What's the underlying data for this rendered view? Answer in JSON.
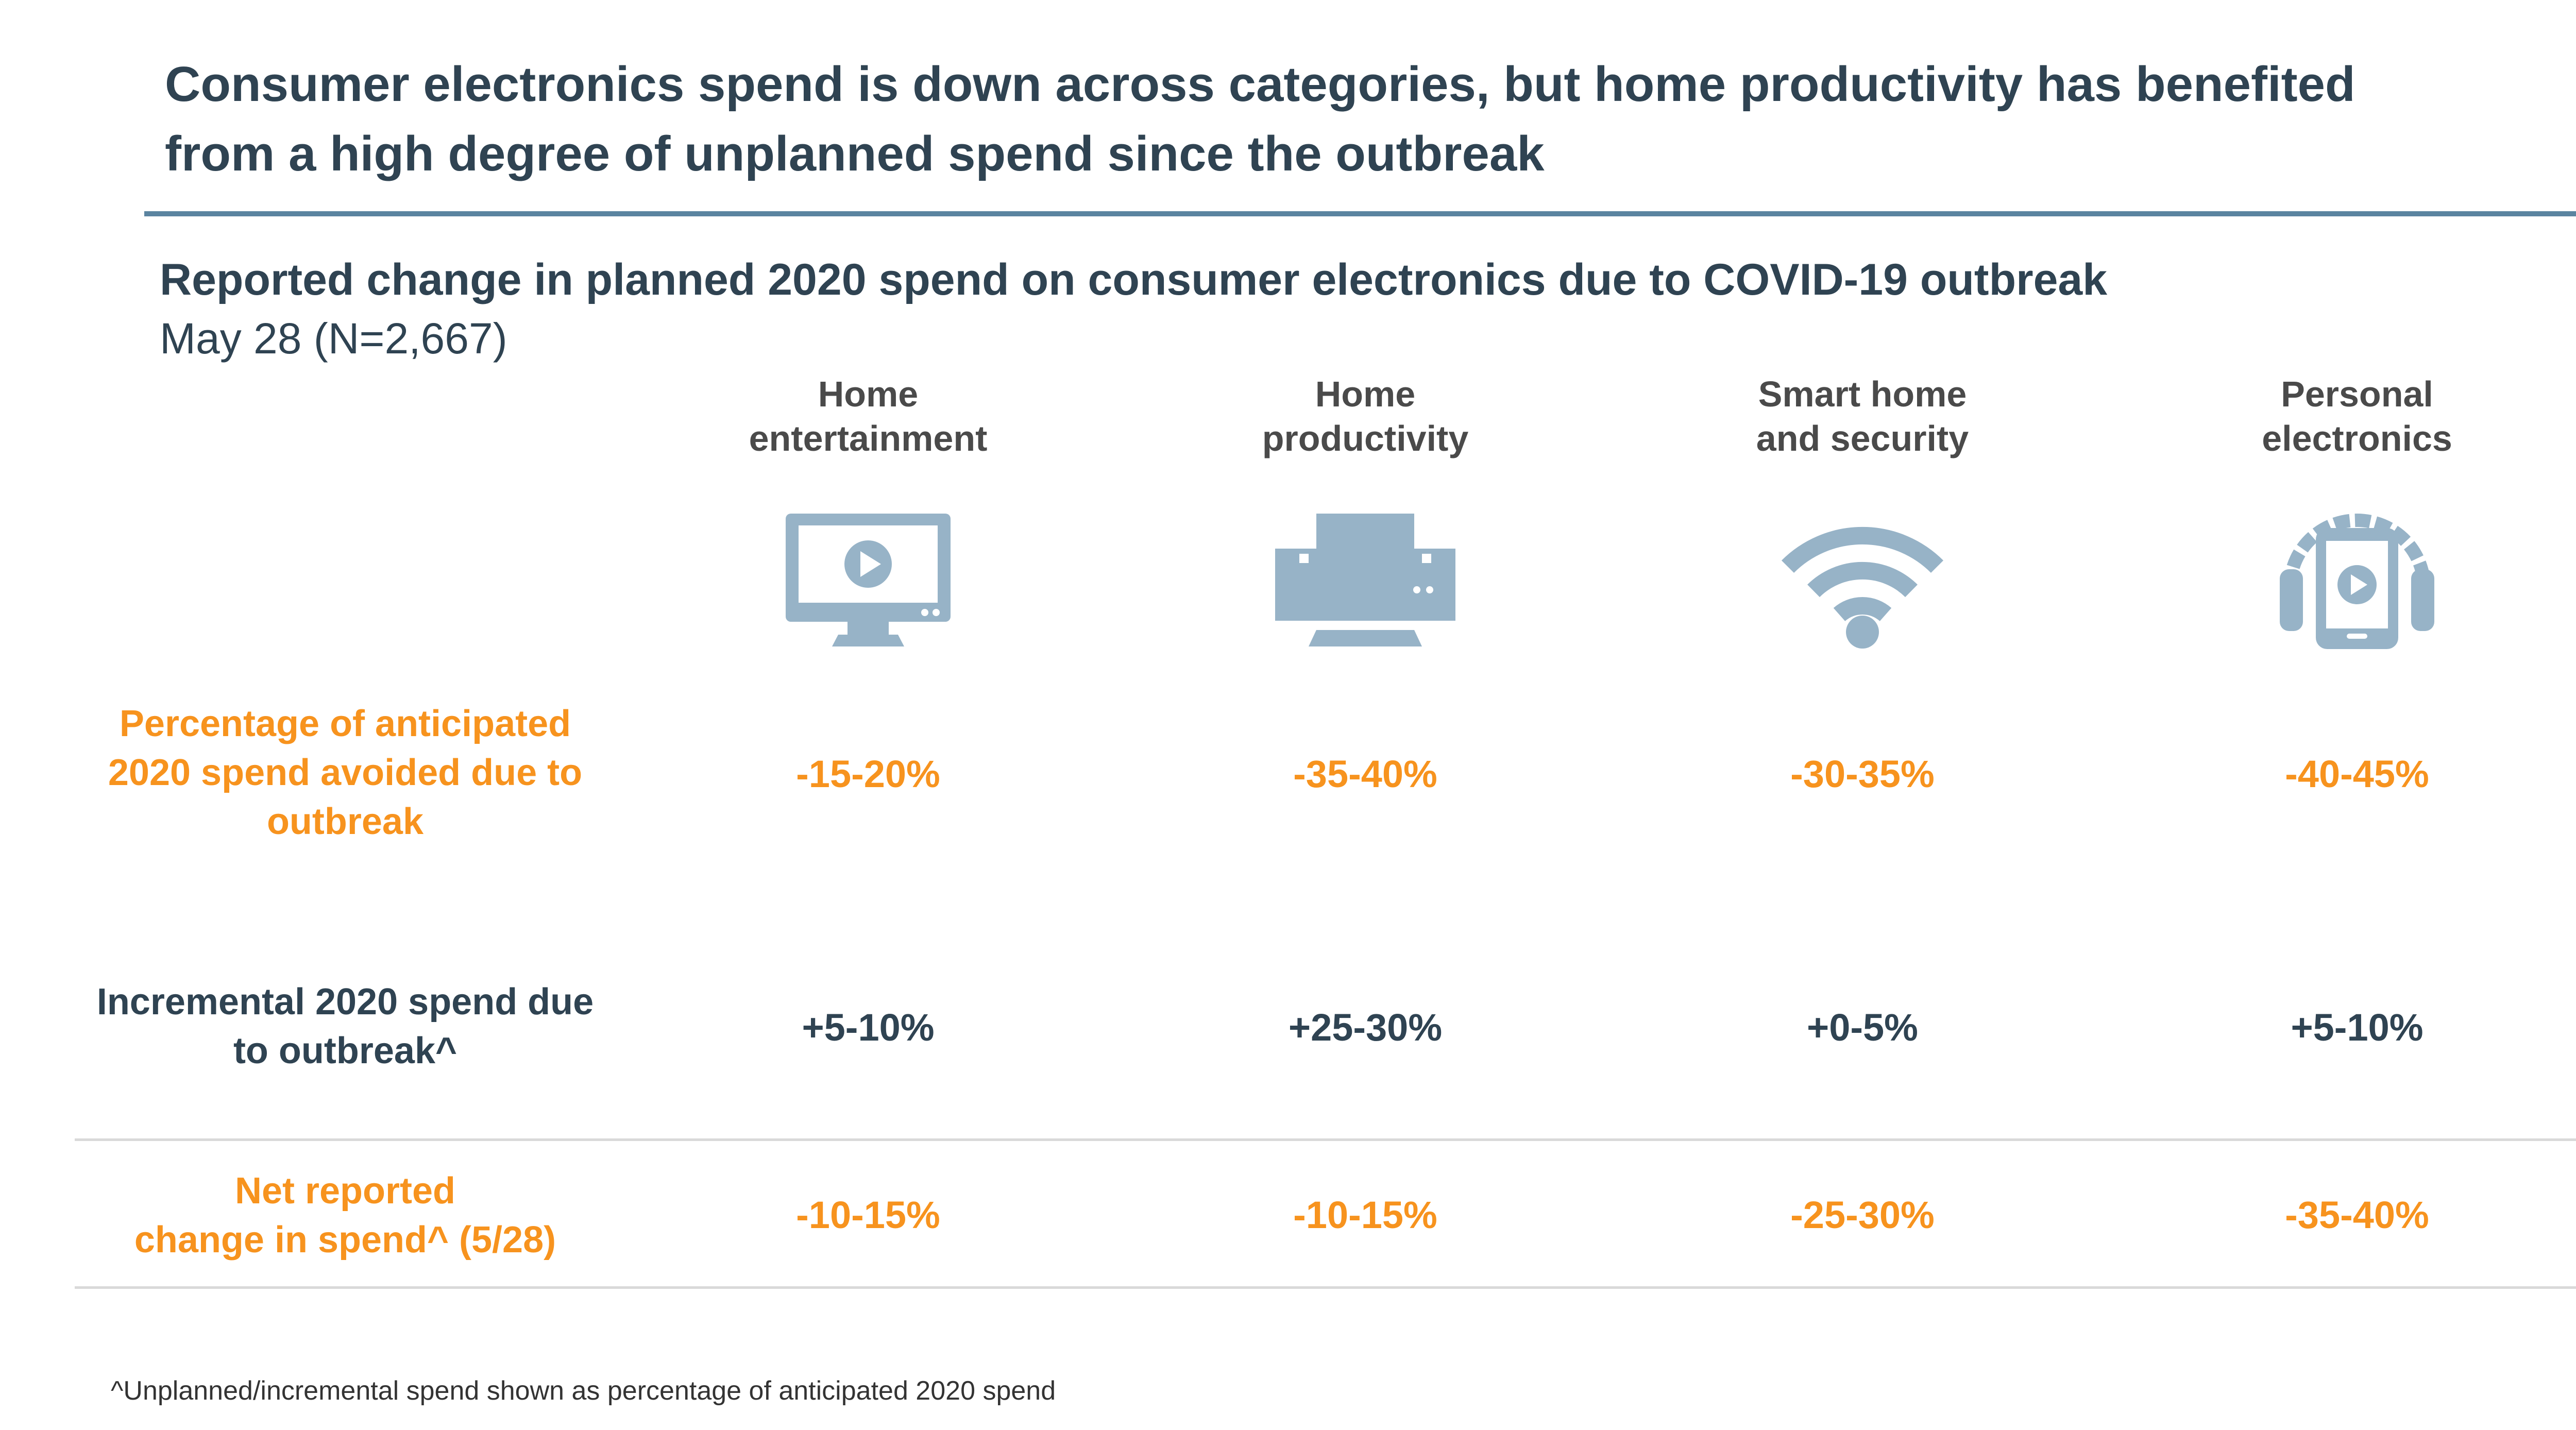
{
  "header": {
    "headline_line1": "Consumer electronics spend is down across categories, but home productivity has benefited",
    "headline_line2": "from a high degree of unplanned spend since the outbreak",
    "subtitle": "Reported change in planned 2020 spend on consumer electronics due to COVID-19 outbreak",
    "subnote": "May 28 (N=2,667)"
  },
  "columns": [
    {
      "line1": "Home",
      "line2": "entertainment",
      "icon": "tv-play-icon"
    },
    {
      "line1": "Home",
      "line2": "productivity",
      "icon": "printer-icon"
    },
    {
      "line1": "Smart home",
      "line2": "and security",
      "icon": "wifi-icon"
    },
    {
      "line1": "Personal",
      "line2": "electronics",
      "icon": "headphones-phone-icon"
    }
  ],
  "rows": {
    "avoided": {
      "label_line1": "Percentage of anticipated",
      "label_line2": "2020 spend avoided due to",
      "label_line3": "outbreak",
      "values": [
        "-15-20%",
        "-35-40%",
        "-30-35%",
        "-40-45%"
      ]
    },
    "incremental": {
      "label_line1": "Incremental 2020 spend due",
      "label_line2": "to outbreak^",
      "values": [
        "+5-10%",
        "+25-30%",
        "+0-5%",
        "+5-10%"
      ]
    },
    "net": {
      "label_line1": "Net reported",
      "label_line2": "change in spend^ (5/28)",
      "values": [
        "-10-15%",
        "-10-15%",
        "-25-30%",
        "-35-40%"
      ]
    }
  },
  "footnote": "^Unplanned/incremental spend shown as percentage of anticipated 2020 spend",
  "colors": {
    "title": "#2f4352",
    "accent_rule": "#5b84a0",
    "orange": "#f7931e",
    "icon": "#97b3c7",
    "divider": "#d9d9d9"
  }
}
